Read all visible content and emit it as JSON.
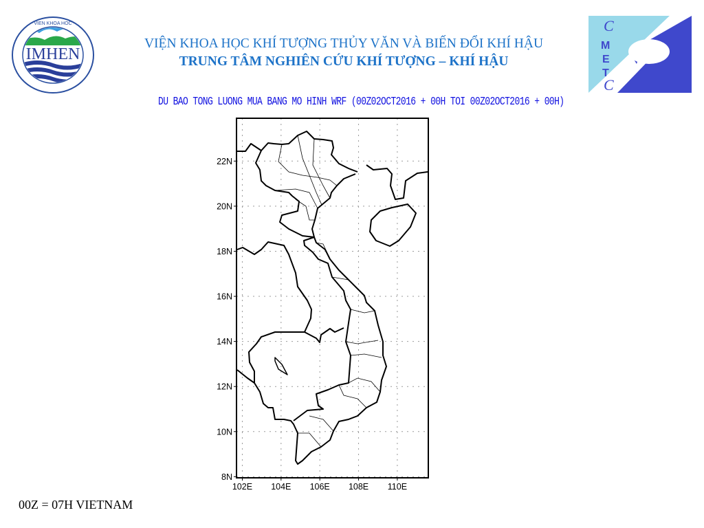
{
  "header": {
    "institute": "VIỆN KHOA HỌC KHÍ TƯỢNG THỦY VĂN VÀ BIẾN ĐỔI KHÍ HẬU",
    "center": "TRUNG TÂM NGHIÊN CỨU KHÍ TƯỢNG – KHÍ HẬU",
    "left_logo": {
      "text": "IMHEN",
      "ring_top": "VIEN KHOA HOC",
      "ring_bottom": "KHÍ TƯỢNG THỦY VĂN VÀ BIẾN ĐỔI KHÍ HẬU"
    },
    "right_logo": {
      "letters": [
        "C",
        "M",
        "E",
        "T",
        "C"
      ]
    }
  },
  "map": {
    "title": "DU BAO TONG LUONG MUA BANG MO HINH WRF (00Z02OCT2016 + 00H TOI 00Z02OCT2016 + 00H)",
    "lon_range": [
      101.7,
      111.6
    ],
    "lat_range": [
      7.95,
      23.9
    ],
    "grid": "dotted",
    "lon_ticks": [
      "102E",
      "104E",
      "106E",
      "108E",
      "110E"
    ],
    "lat_ticks": [
      "22N",
      "20N",
      "18N",
      "16N",
      "14N",
      "12N",
      "10N",
      "8N"
    ],
    "colors": {
      "title": "#1010e0",
      "header": "#1e73c8",
      "logo_blue": "#3f48cc",
      "logo_light": "#99d9ea"
    }
  },
  "footnote": "00Z = 07H VIETNAM"
}
